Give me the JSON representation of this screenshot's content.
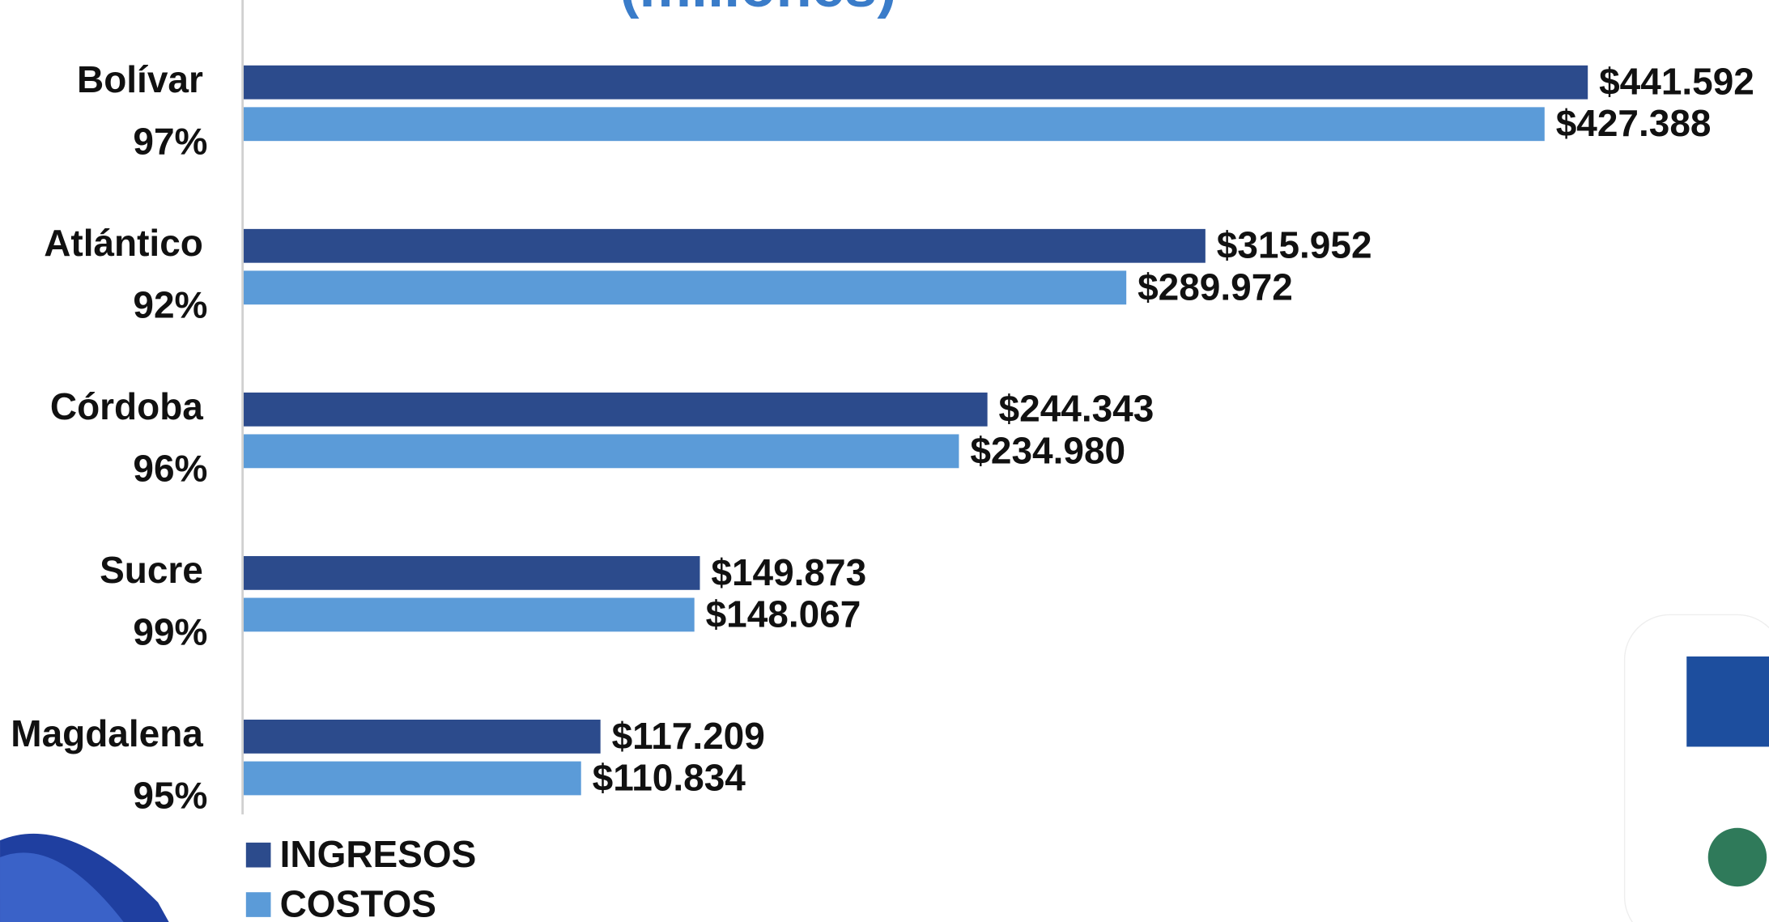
{
  "chart_data": {
    "type": "bar",
    "orientation": "horizontal",
    "title": "(millones)",
    "categories": [
      "Bolívar",
      "Atlántico",
      "Córdoba",
      "Sucre",
      "Magdalena"
    ],
    "ratios": [
      97,
      92,
      96,
      99,
      95
    ],
    "ratio_labels": [
      "97%",
      "92%",
      "96%",
      "99%",
      "95%"
    ],
    "series": [
      {
        "name": "INGRESOS",
        "color": "#2c4b8c",
        "values": [
          441592,
          315952,
          244343,
          149873,
          117209
        ],
        "value_labels": [
          "$441.592",
          "$315.952",
          "$244.343",
          "$149.873",
          "$117.209"
        ]
      },
      {
        "name": "COSTOS",
        "color": "#5b9bd8",
        "values": [
          427388,
          289972,
          234980,
          148067,
          110834
        ],
        "value_labels": [
          "$427.388",
          "$289.972",
          "$234.980",
          "$148.067",
          "$110.834"
        ]
      }
    ],
    "xlim": [
      0,
      500000
    ]
  }
}
